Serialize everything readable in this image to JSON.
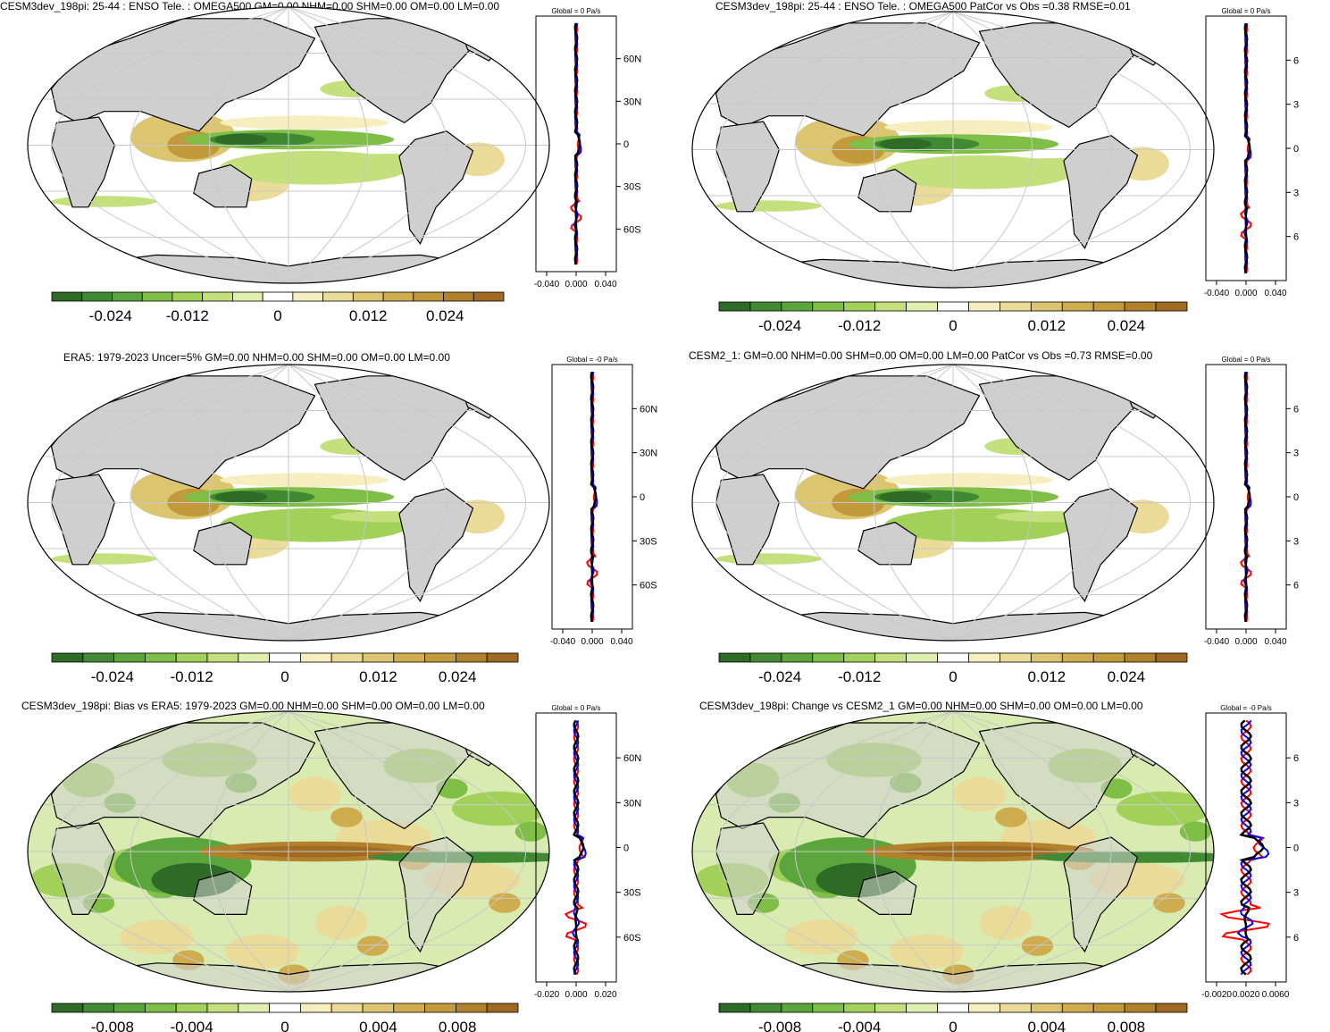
{
  "panels": [
    {
      "id": "p1",
      "title": "CESM3dev_198pi: 25-44 : ENSO Tele. : OMEGA500 GM=0.00 NHM=0.00 SHM=0.00 OM=0.00 LM=0.00",
      "zonal_title": "Global = 0 Pa/s",
      "zonal_ticks": [
        "-0.040",
        "0.000",
        "0.040"
      ],
      "lat_labels": [
        "60N",
        "30N",
        "0",
        "30S",
        "60S"
      ],
      "colorbar_labels": [
        "-0.024",
        "-0.012",
        "0",
        "0.012",
        "0.024"
      ],
      "style": "enso-model"
    },
    {
      "id": "p2",
      "title": "CESM3dev_198pi: 25-44 : ENSO Tele. : OMEGA500 PatCor vs Obs =0.38 RMSE=0.01",
      "zonal_title": "Global = 0 Pa/s",
      "zonal_ticks": [
        "-0.040",
        "0.000",
        "0.040"
      ],
      "lat_labels": [
        "6",
        "3",
        "0",
        "3",
        "6"
      ],
      "colorbar_labels": [
        "-0.024",
        "-0.012",
        "0",
        "0.012",
        "0.024"
      ],
      "style": "enso-model"
    },
    {
      "id": "p3",
      "title": "ERA5: 1979-2023 Uncer=5% GM=0.00 NHM=0.00 SHM=0.00 OM=0.00 LM=0.00",
      "zonal_title": "Global = -0 Pa/s",
      "zonal_ticks": [
        "-0.040",
        "0.000",
        "0.040"
      ],
      "lat_labels": [
        "60N",
        "30N",
        "0",
        "30S",
        "60S"
      ],
      "colorbar_labels": [
        "-0.024",
        "-0.012",
        "0",
        "0.012",
        "0.024"
      ],
      "style": "enso-obs"
    },
    {
      "id": "p4",
      "title": "CESM2_1: GM=0.00 NHM=0.00 SHM=0.00 OM=0.00 LM=0.00 PatCor vs Obs =0.73 RMSE=0.00",
      "zonal_title": "Global = 0 Pa/s",
      "zonal_ticks": [
        "-0.040",
        "0.000",
        "0.040"
      ],
      "lat_labels": [
        "6",
        "3",
        "0",
        "3",
        "6"
      ],
      "colorbar_labels": [
        "-0.024",
        "-0.012",
        "0",
        "0.012",
        "0.024"
      ],
      "style": "enso-obs"
    },
    {
      "id": "p5",
      "title": "CESM3dev_198pi: Bias vs ERA5: 1979-2023 GM=0.00 NHM=0.00 SHM=0.00 OM=0.00 LM=0.00",
      "zonal_title": "Global = 0 Pa/s",
      "zonal_ticks": [
        "-0.020",
        "0.000",
        "0.020"
      ],
      "lat_labels": [
        "60N",
        "30N",
        "0",
        "30S",
        "60S"
      ],
      "colorbar_labels": [
        "-0.008",
        "-0.004",
        "0",
        "0.004",
        "0.008"
      ],
      "style": "diff"
    },
    {
      "id": "p6",
      "title": "CESM3dev_198pi: Change vs CESM2_1 GM=0.00 NHM=0.00 SHM=0.00 OM=0.00 LM=0.00",
      "zonal_title": "Global = -0 Pa/s",
      "zonal_ticks": [
        "-0.0020",
        "0.0020",
        "0.0060"
      ],
      "lat_labels": [
        "6",
        "3",
        "0",
        "3",
        "6"
      ],
      "colorbar_labels": [
        "-0.008",
        "-0.004",
        "0",
        "0.004",
        "0.008"
      ],
      "style": "diff"
    }
  ],
  "colors": {
    "palette": [
      "#2d6b27",
      "#3f8a33",
      "#5aa63c",
      "#7fbf48",
      "#a2d15a",
      "#c3e07c",
      "#e0eeae",
      "#ffffff",
      "#f6eebf",
      "#eadb98",
      "#dcc570",
      "#cfad4e",
      "#c2993b",
      "#b1812c",
      "#a06a22"
    ],
    "land": "#cfcfcf",
    "grid": "#c8c8c8",
    "series": [
      "#ff0000",
      "#0000ff",
      "#000000"
    ]
  }
}
